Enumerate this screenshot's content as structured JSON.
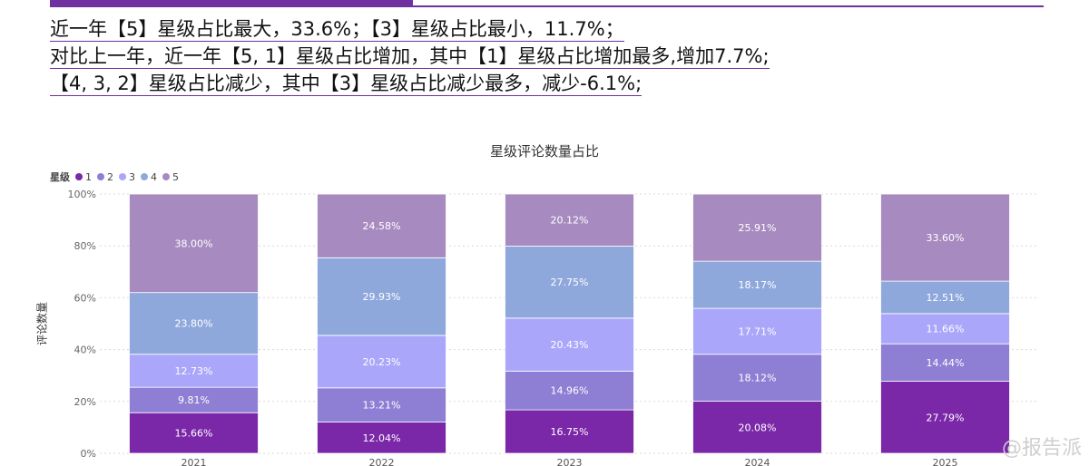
{
  "summary": {
    "line1": "近一年【5】星级占比最大，33.6%；【3】星级占比最小，11.7%；",
    "line2": "对比上一年，近一年【5, 1】星级占比增加，其中【1】星级占比增加最多,增加7.7%;",
    "line3": "【4, 3, 2】星级占比减少，其中【3】星级占比减少最多，减少-6.1%;"
  },
  "legend_title": "星级",
  "watermark": "@报告派",
  "colors": {
    "1": "#7a27a8",
    "2": "#8e7fd4",
    "3": "#aaa7fb",
    "4": "#8fa8dc",
    "5": "#a78bc0"
  },
  "chart_data": {
    "type": "bar",
    "stacked": true,
    "title": "星级评论数量占比",
    "xlabel": "",
    "ylabel": "评论数量",
    "ylim": [
      0,
      100
    ],
    "y_ticks": [
      "0%",
      "20%",
      "40%",
      "60%",
      "80%",
      "100%"
    ],
    "grid": true,
    "legend_position": "top-left",
    "categories": [
      "2021",
      "2022",
      "2023",
      "2024",
      "2025"
    ],
    "series": [
      {
        "name": "1",
        "values": [
          15.66,
          12.04,
          16.75,
          20.08,
          27.79
        ],
        "labels": [
          "15.66%",
          "12.04%",
          "16.75%",
          "20.08%",
          "27.79%"
        ]
      },
      {
        "name": "2",
        "values": [
          9.81,
          13.21,
          14.96,
          18.12,
          14.44
        ],
        "labels": [
          "9.81%",
          "13.21%",
          "14.96%",
          "18.12%",
          "14.44%"
        ]
      },
      {
        "name": "3",
        "values": [
          12.73,
          20.23,
          20.43,
          17.71,
          11.66
        ],
        "labels": [
          "12.73%",
          "20.23%",
          "20.43%",
          "17.71%",
          "11.66%"
        ]
      },
      {
        "name": "4",
        "values": [
          23.8,
          29.93,
          27.75,
          18.17,
          12.51
        ],
        "labels": [
          "23.80%",
          "29.93%",
          "27.75%",
          "18.17%",
          "12.51%"
        ]
      },
      {
        "name": "5",
        "values": [
          38.0,
          24.58,
          20.12,
          25.91,
          33.6
        ],
        "labels": [
          "38.00%",
          "24.58%",
          "20.12%",
          "25.91%",
          "33.60%"
        ]
      }
    ]
  }
}
